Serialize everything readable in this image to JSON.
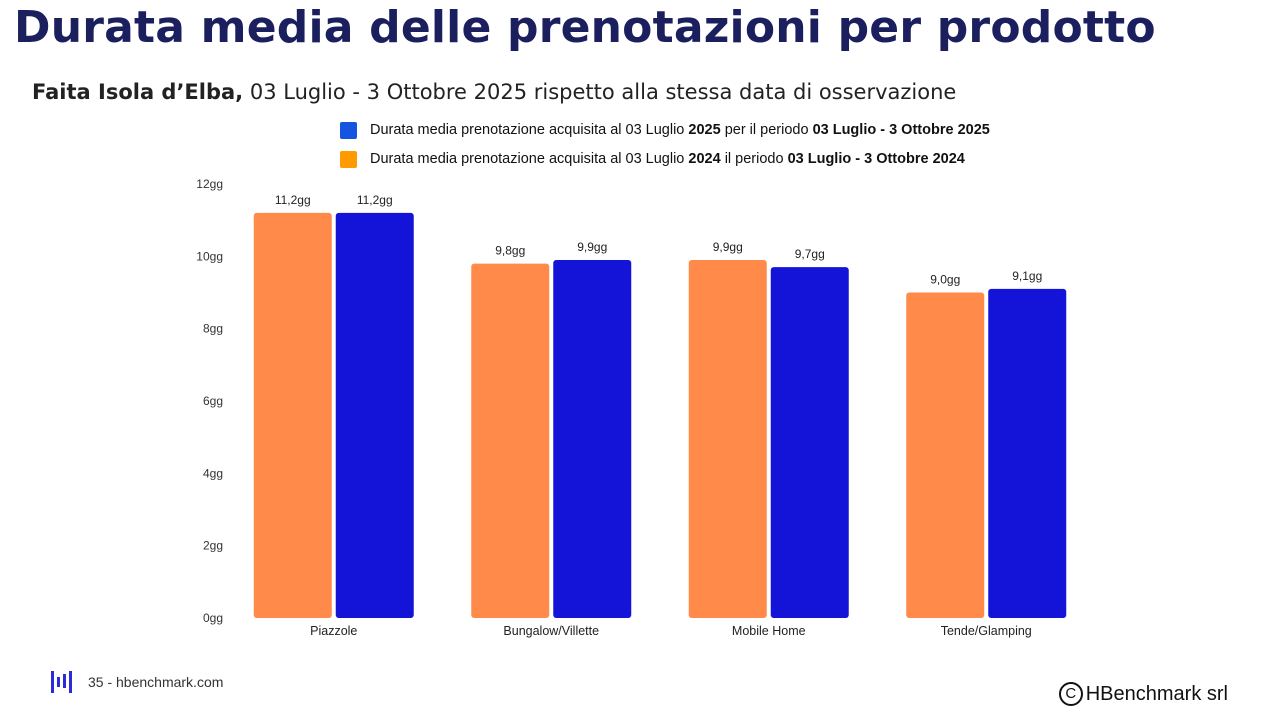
{
  "title": "Durata media delle prenotazioni per prodotto",
  "subtitle": {
    "location": "Faita Isola d’Elba,",
    "text": " 03 Luglio - 3 Ottobre 2025 rispetto alla stessa data di osservazione"
  },
  "legend": [
    {
      "color": "#1554e0",
      "pre": "Durata media prenotazione acquisita al 03 Luglio ",
      "year": "2025",
      "mid": " per il periodo ",
      "period": "03 Luglio - 3 Ottobre 2025"
    },
    {
      "color": "#ff9a00",
      "pre": "Durata media prenotazione acquisita al 03 Luglio ",
      "year": "2024",
      "mid": " il periodo ",
      "period": "03 Luglio - 3 Ottobre 2024"
    }
  ],
  "chart_data": {
    "type": "bar",
    "categories": [
      "Piazzole",
      "Bungalow/Villette",
      "Mobile Home",
      "Tende/Glamping"
    ],
    "series": [
      {
        "name": "2024",
        "color": "#ff8a4a",
        "values": [
          11.2,
          9.8,
          9.9,
          9.0
        ],
        "labels": [
          "11,2gg",
          "9,8gg",
          "9,9gg",
          "9,0gg"
        ]
      },
      {
        "name": "2025",
        "color": "#1414d8",
        "values": [
          11.2,
          9.9,
          9.7,
          9.1
        ],
        "labels": [
          "11,2gg",
          "9,9gg",
          "9,7gg",
          "9,1gg"
        ]
      }
    ],
    "ylim": [
      0,
      12
    ],
    "yticks": [
      0,
      2,
      4,
      6,
      8,
      10,
      12
    ],
    "ytick_labels": [
      "0gg",
      "2gg",
      "4gg",
      "6gg",
      "8gg",
      "10gg",
      "12gg"
    ],
    "grid": false,
    "legend_position": "top"
  },
  "footer": {
    "page": "35 - hbenchmark.com",
    "copyright_symbol": "C",
    "company": "HBenchmark srl"
  }
}
